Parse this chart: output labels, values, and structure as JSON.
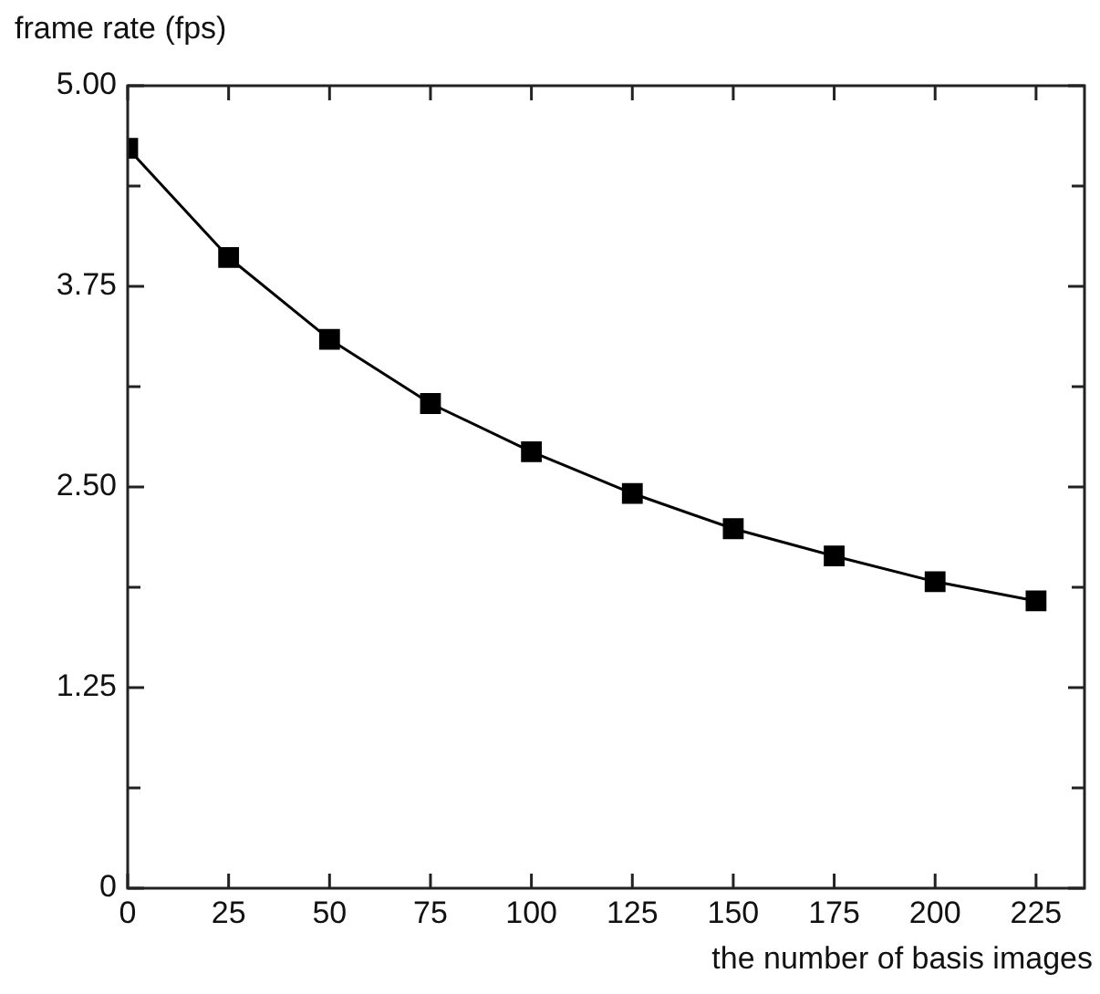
{
  "chart_data": {
    "type": "line",
    "xlabel": "the number of basis images",
    "ylabel": "frame rate (fps)",
    "x": [
      0,
      25,
      50,
      75,
      100,
      125,
      150,
      175,
      200,
      225
    ],
    "series": [
      {
        "color": "#000000",
        "values": [
          4.61,
          3.93,
          3.42,
          3.02,
          2.72,
          2.46,
          2.24,
          2.07,
          1.91,
          1.79
        ]
      }
    ],
    "xlim": [
      0,
      237
    ],
    "xticks": [
      0,
      25,
      50,
      75,
      100,
      125,
      150,
      175,
      200,
      225
    ],
    "ylim": [
      0,
      5
    ],
    "yticks": [
      0,
      {
        "value": 0.625,
        "label": null
      },
      1.25,
      {
        "value": 1.875,
        "label": null
      },
      {
        "value": 2.5,
        "label": "2.50"
      },
      {
        "value": 3.125,
        "label": null
      },
      3.75,
      {
        "value": 4.375,
        "label": null
      },
      {
        "value": 5,
        "label": "5.00"
      }
    ],
    "grid": false,
    "legend": false,
    "marker": "square",
    "line_style": "solid"
  }
}
